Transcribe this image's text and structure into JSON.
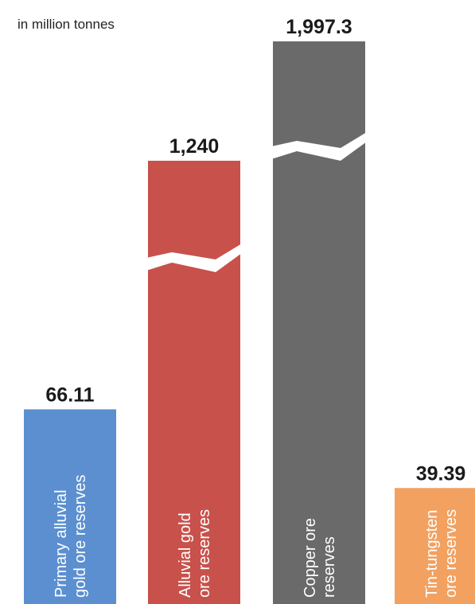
{
  "chart_data": {
    "type": "bar",
    "subtitle": "in million tonnes",
    "categories": [
      "Primary alluvial gold ore reserves",
      "Alluvial gold ore reserves",
      "Copper ore reserves",
      "Tin-tungsten ore reserves"
    ],
    "category_lines": [
      [
        "Primary alluvial",
        "gold ore reserves"
      ],
      [
        "Alluvial gold",
        "ore reserves"
      ],
      [
        "Copper ore",
        "reserves"
      ],
      [
        "Tin-tungsten",
        "ore reserves"
      ]
    ],
    "values": [
      66.11,
      1240,
      1997.3,
      39.39
    ],
    "value_labels": [
      "66.11",
      "1,240",
      "1,997.3",
      "39.39"
    ],
    "colors": [
      "#5b8fd0",
      "#c8514b",
      "#6a6a6a",
      "#f2a160"
    ],
    "axis_break": [
      false,
      true,
      true,
      false
    ],
    "grid": false,
    "legend": "none"
  }
}
